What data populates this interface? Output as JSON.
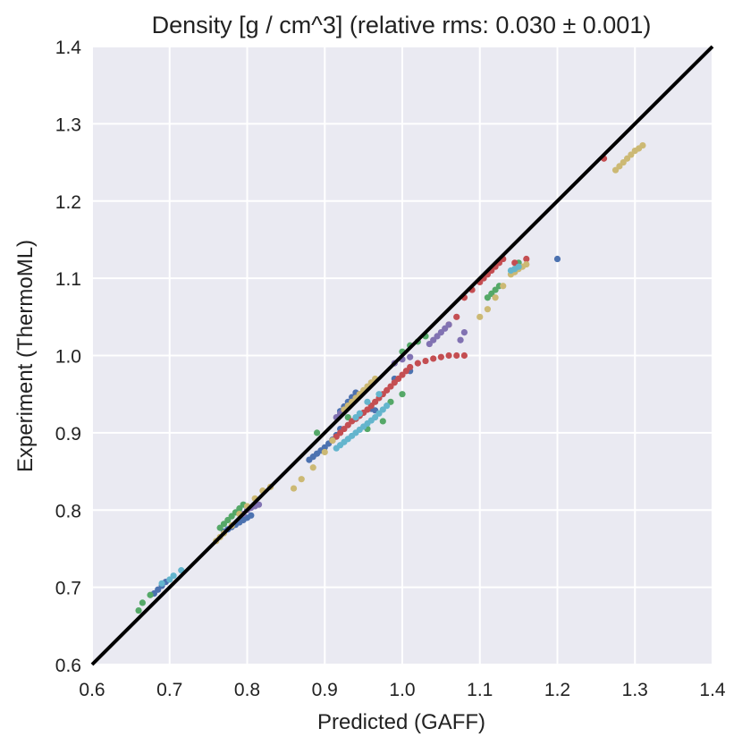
{
  "chart_data": {
    "type": "scatter",
    "title": "Density [g / cm^3] (relative rms: 0.030 ± 0.001)",
    "xlabel": "Predicted (GAFF)",
    "ylabel": "Experiment (ThermoML)",
    "xlim": [
      0.6,
      1.4
    ],
    "ylim": [
      0.6,
      1.4
    ],
    "xticks": [
      "0.6",
      "0.7",
      "0.8",
      "0.9",
      "1.0",
      "1.1",
      "1.2",
      "1.3",
      "1.4"
    ],
    "yticks": [
      "0.6",
      "0.7",
      "0.8",
      "0.9",
      "1.0",
      "1.1",
      "1.2",
      "1.3",
      "1.4"
    ],
    "grid": true,
    "background": "#eaeaf2",
    "gridColor": "#ffffff",
    "identity_line": {
      "x": [
        0.6,
        1.4
      ],
      "y": [
        0.6,
        1.4
      ],
      "color": "#000000"
    },
    "series": [
      {
        "name": "blue",
        "color": "#4c72b0",
        "points": [
          [
            0.68,
            0.692
          ],
          [
            0.685,
            0.697
          ],
          [
            0.69,
            0.702
          ],
          [
            0.695,
            0.707
          ],
          [
            0.77,
            0.772
          ],
          [
            0.775,
            0.775
          ],
          [
            0.78,
            0.778
          ],
          [
            0.785,
            0.781
          ],
          [
            0.79,
            0.784
          ],
          [
            0.795,
            0.787
          ],
          [
            0.8,
            0.79
          ],
          [
            0.805,
            0.793
          ],
          [
            0.88,
            0.865
          ],
          [
            0.885,
            0.869
          ],
          [
            0.89,
            0.873
          ],
          [
            0.895,
            0.877
          ],
          [
            0.9,
            0.881
          ],
          [
            0.905,
            0.886
          ],
          [
            0.91,
            0.891
          ],
          [
            0.915,
            0.897
          ],
          [
            0.92,
            0.905
          ],
          [
            0.92,
            0.928
          ],
          [
            0.925,
            0.934
          ],
          [
            0.93,
            0.94
          ],
          [
            0.935,
            0.946
          ],
          [
            0.94,
            0.952
          ],
          [
            0.96,
            0.931
          ],
          [
            0.965,
            0.929
          ],
          [
            0.99,
            0.97
          ],
          [
            1.01,
            0.98
          ],
          [
            1.2,
            1.125
          ]
        ]
      },
      {
        "name": "green",
        "color": "#55a868",
        "points": [
          [
            0.66,
            0.67
          ],
          [
            0.665,
            0.68
          ],
          [
            0.675,
            0.69
          ],
          [
            0.765,
            0.777
          ],
          [
            0.77,
            0.782
          ],
          [
            0.775,
            0.787
          ],
          [
            0.78,
            0.792
          ],
          [
            0.785,
            0.797
          ],
          [
            0.79,
            0.802
          ],
          [
            0.795,
            0.807
          ],
          [
            0.89,
            0.9
          ],
          [
            0.93,
            0.92
          ],
          [
            0.955,
            0.905
          ],
          [
            0.975,
            0.915
          ],
          [
            0.985,
            0.94
          ],
          [
            1.0,
            0.95
          ],
          [
            1.0,
            1.005
          ],
          [
            1.01,
            1.013
          ],
          [
            1.02,
            1.018
          ],
          [
            1.03,
            1.025
          ],
          [
            1.11,
            1.075
          ],
          [
            1.115,
            1.08
          ],
          [
            1.12,
            1.085
          ],
          [
            1.125,
            1.09
          ],
          [
            1.145,
            1.112
          ],
          [
            1.15,
            1.12
          ]
        ]
      },
      {
        "name": "red",
        "color": "#c44e52",
        "points": [
          [
            0.91,
            0.89
          ],
          [
            0.915,
            0.895
          ],
          [
            0.92,
            0.9
          ],
          [
            0.925,
            0.905
          ],
          [
            0.93,
            0.91
          ],
          [
            0.935,
            0.915
          ],
          [
            0.94,
            0.918
          ],
          [
            0.945,
            0.922
          ],
          [
            0.95,
            0.926
          ],
          [
            0.955,
            0.93
          ],
          [
            0.96,
            0.935
          ],
          [
            0.965,
            0.94
          ],
          [
            0.97,
            0.945
          ],
          [
            0.975,
            0.95
          ],
          [
            0.98,
            0.955
          ],
          [
            0.985,
            0.96
          ],
          [
            0.99,
            0.965
          ],
          [
            0.995,
            0.97
          ],
          [
            1.0,
            0.975
          ],
          [
            1.005,
            0.98
          ],
          [
            1.01,
            0.985
          ],
          [
            1.02,
            0.99
          ],
          [
            1.03,
            0.993
          ],
          [
            1.04,
            0.996
          ],
          [
            1.05,
            0.998
          ],
          [
            1.06,
            1.0
          ],
          [
            1.07,
            1.0
          ],
          [
            1.08,
            1.0
          ],
          [
            1.06,
            1.04
          ],
          [
            1.07,
            1.05
          ],
          [
            1.08,
            1.075
          ],
          [
            1.09,
            1.085
          ],
          [
            1.1,
            1.095
          ],
          [
            1.105,
            1.1
          ],
          [
            1.11,
            1.105
          ],
          [
            1.115,
            1.11
          ],
          [
            1.12,
            1.115
          ],
          [
            1.125,
            1.12
          ],
          [
            1.13,
            1.125
          ],
          [
            1.145,
            1.12
          ],
          [
            1.16,
            1.125
          ],
          [
            1.26,
            1.255
          ]
        ]
      },
      {
        "name": "purple",
        "color": "#8172b2",
        "points": [
          [
            0.795,
            0.795
          ],
          [
            0.8,
            0.8
          ],
          [
            0.805,
            0.803
          ],
          [
            0.81,
            0.805
          ],
          [
            0.815,
            0.807
          ],
          [
            0.915,
            0.92
          ],
          [
            0.92,
            0.925
          ],
          [
            0.925,
            0.93
          ],
          [
            0.93,
            0.935
          ],
          [
            0.935,
            0.94
          ],
          [
            0.94,
            0.945
          ],
          [
            0.945,
            0.95
          ],
          [
            0.99,
            0.99
          ],
          [
            1.0,
            0.995
          ],
          [
            1.01,
            0.998
          ],
          [
            1.035,
            1.015
          ],
          [
            1.04,
            1.02
          ],
          [
            1.045,
            1.025
          ],
          [
            1.05,
            1.03
          ],
          [
            1.055,
            1.035
          ],
          [
            1.06,
            1.04
          ],
          [
            1.075,
            1.02
          ],
          [
            1.08,
            1.03
          ]
        ]
      },
      {
        "name": "yellow",
        "color": "#ccb974",
        "points": [
          [
            0.76,
            0.76
          ],
          [
            0.765,
            0.765
          ],
          [
            0.77,
            0.77
          ],
          [
            0.78,
            0.78
          ],
          [
            0.79,
            0.795
          ],
          [
            0.8,
            0.805
          ],
          [
            0.81,
            0.815
          ],
          [
            0.82,
            0.825
          ],
          [
            0.83,
            0.83
          ],
          [
            0.86,
            0.828
          ],
          [
            0.87,
            0.84
          ],
          [
            0.885,
            0.855
          ],
          [
            0.9,
            0.875
          ],
          [
            0.91,
            0.89
          ],
          [
            0.925,
            0.93
          ],
          [
            0.93,
            0.935
          ],
          [
            0.935,
            0.94
          ],
          [
            0.94,
            0.945
          ],
          [
            0.945,
            0.95
          ],
          [
            0.95,
            0.955
          ],
          [
            0.955,
            0.96
          ],
          [
            0.96,
            0.965
          ],
          [
            0.965,
            0.97
          ],
          [
            1.1,
            1.05
          ],
          [
            1.11,
            1.06
          ],
          [
            1.12,
            1.075
          ],
          [
            1.13,
            1.09
          ],
          [
            1.14,
            1.105
          ],
          [
            1.145,
            1.108
          ],
          [
            1.15,
            1.112
          ],
          [
            1.155,
            1.115
          ],
          [
            1.16,
            1.118
          ],
          [
            1.275,
            1.24
          ],
          [
            1.28,
            1.245
          ],
          [
            1.285,
            1.25
          ],
          [
            1.29,
            1.255
          ],
          [
            1.295,
            1.26
          ],
          [
            1.3,
            1.265
          ],
          [
            1.305,
            1.268
          ],
          [
            1.31,
            1.272
          ]
        ]
      },
      {
        "name": "cyan",
        "color": "#64b5cd",
        "points": [
          [
            0.69,
            0.705
          ],
          [
            0.7,
            0.71
          ],
          [
            0.705,
            0.715
          ],
          [
            0.715,
            0.722
          ],
          [
            0.915,
            0.88
          ],
          [
            0.92,
            0.884
          ],
          [
            0.925,
            0.888
          ],
          [
            0.93,
            0.892
          ],
          [
            0.935,
            0.896
          ],
          [
            0.94,
            0.9
          ],
          [
            0.945,
            0.904
          ],
          [
            0.95,
            0.908
          ],
          [
            0.955,
            0.912
          ],
          [
            0.96,
            0.916
          ],
          [
            0.965,
            0.92
          ],
          [
            0.97,
            0.925
          ],
          [
            0.975,
            0.93
          ],
          [
            0.98,
            0.935
          ],
          [
            0.94,
            0.92
          ],
          [
            0.945,
            0.925
          ],
          [
            0.955,
            0.94
          ],
          [
            0.97,
            0.95
          ],
          [
            1.14,
            1.11
          ],
          [
            1.145,
            1.112
          ],
          [
            1.15,
            1.115
          ]
        ]
      }
    ]
  }
}
